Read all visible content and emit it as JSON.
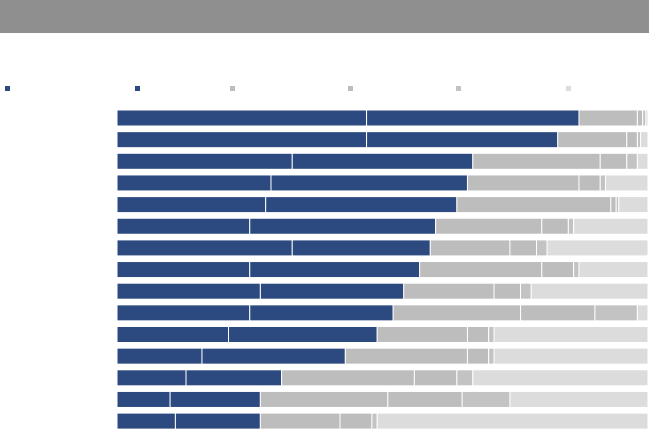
{
  "chart_data": {
    "type": "bar",
    "orientation": "horizontal",
    "stacked": true,
    "series": [
      {
        "color": "#2c4a7f",
        "values": [
          47,
          47,
          33,
          29,
          28,
          25,
          33,
          25,
          27,
          25,
          21,
          16,
          13,
          10,
          11
        ]
      },
      {
        "color": "#2c4a7f",
        "values": [
          40,
          36,
          34,
          37,
          36,
          35,
          26,
          32,
          27,
          27,
          28,
          27,
          18,
          17,
          16
        ]
      },
      {
        "color": "#bdbdbd",
        "values": [
          11,
          13,
          24,
          21,
          29,
          20,
          15,
          23,
          17,
          24,
          17,
          23,
          25,
          24,
          15
        ]
      },
      {
        "color": "#bdbdbd",
        "values": [
          1,
          2,
          5,
          4,
          1,
          5,
          5,
          6,
          5,
          14,
          4,
          4,
          8,
          14,
          6
        ]
      },
      {
        "color": "#c3c3c3",
        "values": [
          0.6,
          0.6,
          2,
          1,
          0.5,
          1,
          2,
          1,
          2,
          8,
          1,
          1,
          3,
          9,
          1
        ]
      },
      {
        "color": "#dcdcdc",
        "values": [
          0.4,
          1.4,
          2,
          8,
          5.5,
          14,
          19,
          13,
          22,
          2,
          29,
          29,
          33,
          26,
          51
        ]
      }
    ]
  }
}
